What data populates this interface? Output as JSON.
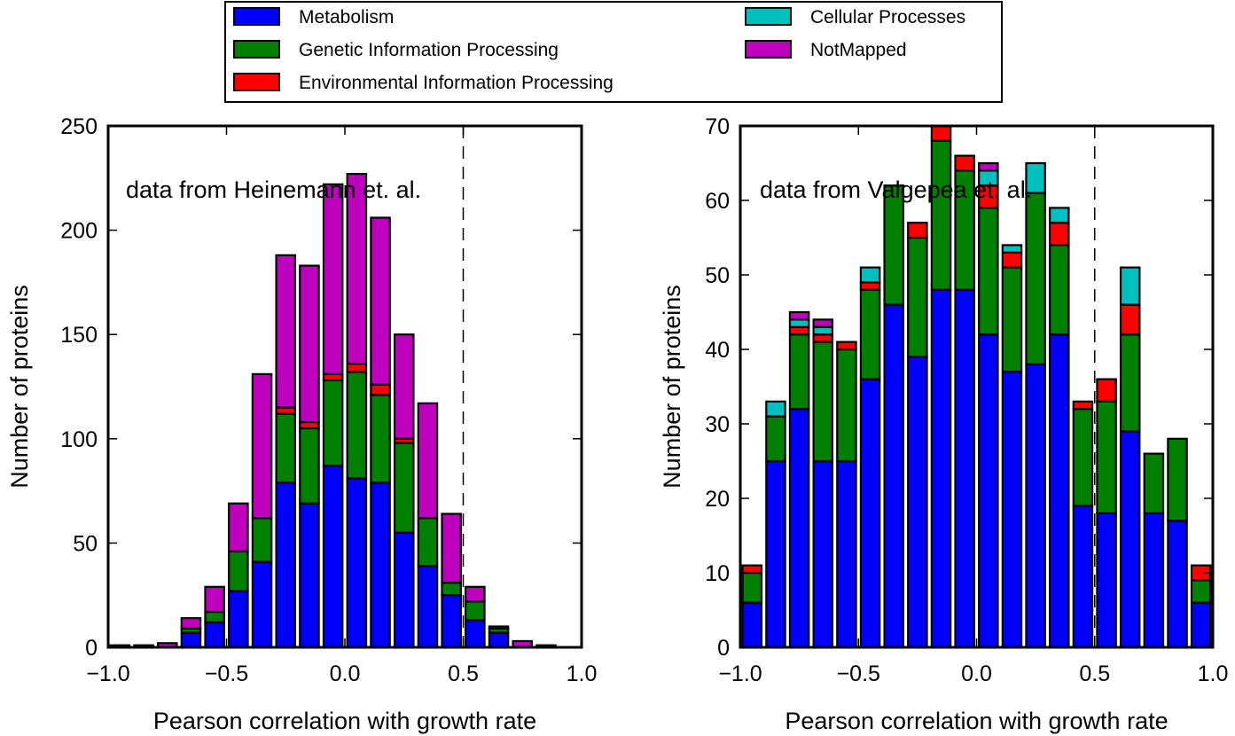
{
  "legend": {
    "location": "top-center",
    "columns": 2,
    "entries": [
      {
        "name": "Metabolism",
        "color": "#0000ff"
      },
      {
        "name": "Genetic Information Processing",
        "color": "#008000"
      },
      {
        "name": "Environmental Information Processing",
        "color": "#ff0000"
      },
      {
        "name": "Cellular Processes",
        "color": "#00bfbf"
      },
      {
        "name": "NotMapped",
        "color": "#bf00bf"
      }
    ]
  },
  "chart_data": [
    {
      "type": "bar",
      "stacked": true,
      "annotation": "data from Heinemann et. al.",
      "xlabel": "Pearson correlation with growth rate",
      "ylabel": "Number of proteins",
      "xlim": [
        -1.0,
        1.0
      ],
      "ylim": [
        0,
        250
      ],
      "xticks": [
        "−1.0",
        "−0.5",
        "0.0",
        "0.5",
        "1.0"
      ],
      "yticks": [
        "0",
        "50",
        "100",
        "150",
        "200",
        "250"
      ],
      "grid": false,
      "vline": 0.5,
      "bin_width": 0.1,
      "x": [
        -0.95,
        -0.85,
        -0.75,
        -0.65,
        -0.55,
        -0.45,
        -0.35,
        -0.25,
        -0.15,
        -0.05,
        0.05,
        0.15,
        0.25,
        0.35,
        0.45,
        0.55,
        0.65,
        0.75,
        0.85,
        0.95
      ],
      "series": [
        {
          "name": "Metabolism",
          "values": [
            0,
            0,
            0,
            7,
            12,
            27,
            41,
            79,
            69,
            87,
            81,
            79,
            55,
            39,
            25,
            13,
            7,
            0,
            0,
            0
          ]
        },
        {
          "name": "Genetic Information Processing",
          "values": [
            0,
            0,
            0,
            2,
            5,
            19,
            21,
            33,
            36,
            41,
            51,
            42,
            43,
            23,
            6,
            9,
            2,
            0,
            0,
            0
          ]
        },
        {
          "name": "Environmental Information Processing",
          "values": [
            0,
            0,
            0,
            0,
            0,
            0,
            0,
            3,
            3,
            3,
            4,
            5,
            2,
            0,
            0,
            0,
            0,
            0,
            0,
            0
          ]
        },
        {
          "name": "Cellular Processes",
          "values": [
            0,
            0,
            0,
            0,
            0,
            0,
            0,
            0,
            0,
            0,
            0,
            0,
            0,
            0,
            0,
            0,
            0,
            0,
            0,
            0
          ]
        },
        {
          "name": "NotMapped",
          "values": [
            1,
            1,
            2,
            5,
            12,
            23,
            69,
            73,
            75,
            91,
            91,
            80,
            50,
            55,
            33,
            7,
            1,
            3,
            1,
            0
          ]
        }
      ]
    },
    {
      "type": "bar",
      "stacked": true,
      "annotation": "data from Valgepea et. al.",
      "xlabel": "Pearson correlation with growth rate",
      "ylabel": "Number of proteins",
      "xlim": [
        -1.0,
        1.0
      ],
      "ylim": [
        0,
        70
      ],
      "xticks": [
        "−1.0",
        "−0.5",
        "0.0",
        "0.5",
        "1.0"
      ],
      "yticks": [
        "0",
        "10",
        "20",
        "30",
        "40",
        "50",
        "60",
        "70"
      ],
      "grid": false,
      "vline": 0.5,
      "bin_width": 0.1,
      "x": [
        -0.95,
        -0.85,
        -0.75,
        -0.65,
        -0.55,
        -0.45,
        -0.35,
        -0.25,
        -0.15,
        -0.05,
        0.05,
        0.15,
        0.25,
        0.35,
        0.45,
        0.55,
        0.65,
        0.75,
        0.85,
        0.95
      ],
      "series": [
        {
          "name": "Metabolism",
          "values": [
            6,
            25,
            32,
            25,
            25,
            36,
            46,
            39,
            48,
            48,
            42,
            37,
            38,
            42,
            19,
            18,
            29,
            18,
            17,
            6
          ]
        },
        {
          "name": "Genetic Information Processing",
          "values": [
            4,
            6,
            10,
            16,
            15,
            12,
            16,
            16,
            20,
            16,
            17,
            14,
            23,
            12,
            13,
            15,
            13,
            8,
            11,
            3
          ]
        },
        {
          "name": "Environmental Information Processing",
          "values": [
            1,
            0,
            1,
            1,
            1,
            1,
            0,
            2,
            2,
            2,
            3,
            2,
            0,
            3,
            1,
            3,
            4,
            0,
            0,
            2
          ]
        },
        {
          "name": "Cellular Processes",
          "values": [
            0,
            2,
            1,
            1,
            0,
            2,
            0,
            0,
            0,
            0,
            2,
            1,
            4,
            2,
            0,
            0,
            5,
            0,
            0,
            0
          ]
        },
        {
          "name": "NotMapped",
          "values": [
            0,
            0,
            1,
            1,
            0,
            0,
            0,
            0,
            0,
            0,
            1,
            0,
            0,
            0,
            0,
            0,
            0,
            0,
            0,
            0
          ]
        }
      ]
    }
  ]
}
